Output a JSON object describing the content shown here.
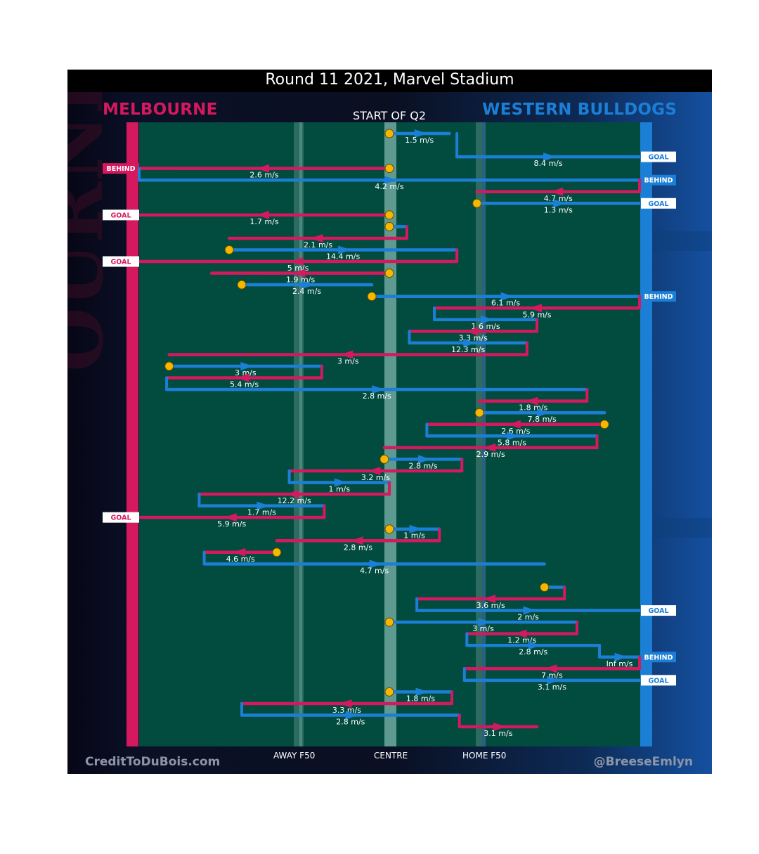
{
  "header": {
    "title": "Round 11 2021, Marvel Stadium",
    "subtitle": "START OF Q2"
  },
  "teams": {
    "home": "MELBOURNE",
    "away": "WESTERN BULLDOGS",
    "home_color": "#d4195f",
    "away_color": "#1c7fd6"
  },
  "footer": {
    "left_credit": "CreditToDuBois.com",
    "right_credit": "@BreeseEmlyn"
  },
  "colors": {
    "field": "#024b3f",
    "melbourne": "#d4195f",
    "bulldogs": "#1c7fd6",
    "marker": "#f5b800"
  },
  "chart_data": {
    "type": "line",
    "title": "Round 11 2021, Marvel Stadium",
    "subtitle": "START OF Q2",
    "x_axis_labels": [
      "AWAY F50",
      "CENTRE",
      "HOME F50"
    ],
    "legend": [
      "MELBOURNE",
      "WESTERN BULLDOGS"
    ],
    "chains": [
      {
        "team": "Bulldogs",
        "row": 0,
        "from": 0.5,
        "to": 0.62,
        "speed": "1.5 m/s",
        "start": true
      },
      {
        "team": "Bulldogs",
        "row": 2,
        "from": 0.635,
        "to": 1.0,
        "speed": "8.4 m/s",
        "end": "GOAL"
      },
      {
        "team": "Melbourne",
        "row": 3,
        "from": 0.5,
        "to": 0.0,
        "speed": "2.6 m/s",
        "start": true,
        "end": "BEHIND"
      },
      {
        "team": "Bulldogs",
        "row": 4,
        "from": 0.0,
        "to": 1.0,
        "speed": "4.2 m/s",
        "end": "BEHIND"
      },
      {
        "team": "Melbourne",
        "row": 5,
        "from": 1.0,
        "to": 0.675,
        "speed": "4.7 m/s"
      },
      {
        "team": "Bulldogs",
        "row": 6,
        "from": 0.675,
        "to": 1.0,
        "speed": "1.3 m/s",
        "start": true,
        "end": "GOAL"
      },
      {
        "team": "Melbourne",
        "row": 7,
        "from": 0.5,
        "to": 0.0,
        "speed": "1.7 m/s",
        "start": true,
        "end": "GOAL"
      },
      {
        "team": "Bulldogs",
        "row": 8,
        "from": 0.5,
        "to": 0.535,
        "speed": "",
        "start": true
      },
      {
        "team": "Melbourne",
        "row": 9,
        "from": 0.535,
        "to": 0.18,
        "speed": "2.1 m/s"
      },
      {
        "team": "Bulldogs",
        "row": 10,
        "from": 0.18,
        "to": 0.635,
        "speed": "14.4 m/s",
        "start": true
      },
      {
        "team": "Melbourne",
        "row": 11,
        "from": 0.635,
        "to": 0.0,
        "speed": "5 m/s",
        "end": "GOAL"
      },
      {
        "team": "Melbourne",
        "row": 12,
        "from": 0.5,
        "to": 0.145,
        "speed": "1.9 m/s",
        "start": true
      },
      {
        "team": "Bulldogs",
        "row": 13,
        "from": 0.205,
        "to": 0.465,
        "speed": "2.4 m/s",
        "start": true
      },
      {
        "team": "Bulldogs",
        "row": 14,
        "from": 0.465,
        "to": 1.0,
        "speed": "6.1 m/s",
        "start": true,
        "end": "BEHIND"
      },
      {
        "team": "Melbourne",
        "row": 15,
        "from": 1.0,
        "to": 0.59,
        "speed": "5.9 m/s"
      },
      {
        "team": "Bulldogs",
        "row": 16,
        "from": 0.59,
        "to": 0.795,
        "speed": "1.6 m/s"
      },
      {
        "team": "Melbourne",
        "row": 17,
        "from": 0.795,
        "to": 0.54,
        "speed": "3.3 m/s"
      },
      {
        "team": "Bulldogs",
        "row": 18,
        "from": 0.54,
        "to": 0.775,
        "speed": "12.3 m/s"
      },
      {
        "team": "Melbourne",
        "row": 19,
        "from": 0.775,
        "to": 0.06,
        "speed": "3 m/s"
      },
      {
        "team": "Bulldogs",
        "row": 20,
        "from": 0.06,
        "to": 0.365,
        "speed": "3 m/s",
        "start": true
      },
      {
        "team": "Melbourne",
        "row": 21,
        "from": 0.365,
        "to": 0.055,
        "speed": "5.4 m/s"
      },
      {
        "team": "Bulldogs",
        "row": 22,
        "from": 0.055,
        "to": 0.895,
        "speed": "2.8 m/s"
      },
      {
        "team": "Melbourne",
        "row": 23,
        "from": 0.895,
        "to": 0.68,
        "speed": "1.8 m/s"
      },
      {
        "team": "Bulldogs",
        "row": 24,
        "from": 0.68,
        "to": 0.93,
        "speed": "7.8 m/s",
        "start": true
      },
      {
        "team": "Melbourne",
        "row": 25,
        "from": 0.93,
        "to": 0.575,
        "speed": "2.6 m/s",
        "start": true
      },
      {
        "team": "Bulldogs",
        "row": 26,
        "from": 0.575,
        "to": 0.915,
        "speed": "5.8 m/s"
      },
      {
        "team": "Melbourne",
        "row": 27,
        "from": 0.915,
        "to": 0.49,
        "speed": "2.9 m/s"
      },
      {
        "team": "Bulldogs",
        "row": 28,
        "from": 0.49,
        "to": 0.645,
        "speed": "2.8 m/s",
        "start": true
      },
      {
        "team": "Melbourne",
        "row": 29,
        "from": 0.645,
        "to": 0.3,
        "speed": "3.2 m/s"
      },
      {
        "team": "Bulldogs",
        "row": 30,
        "from": 0.3,
        "to": 0.5,
        "speed": "1 m/s"
      },
      {
        "team": "Melbourne",
        "row": 31,
        "from": 0.5,
        "to": 0.12,
        "speed": "12.2 m/s"
      },
      {
        "team": "Bulldogs",
        "row": 32,
        "from": 0.12,
        "to": 0.37,
        "speed": "1.7 m/s"
      },
      {
        "team": "Melbourne",
        "row": 33,
        "from": 0.37,
        "to": 0.0,
        "speed": "5.9 m/s",
        "end": "GOAL"
      },
      {
        "team": "Bulldogs",
        "row": 34,
        "from": 0.5,
        "to": 0.6,
        "speed": "1 m/s",
        "start": true
      },
      {
        "team": "Melbourne",
        "row": 35,
        "from": 0.6,
        "to": 0.275,
        "speed": "2.8 m/s"
      },
      {
        "team": "Melbourne",
        "row": 36,
        "from": 0.275,
        "to": 0.13,
        "speed": "4.6 m/s",
        "start": true
      },
      {
        "team": "Bulldogs",
        "row": 37,
        "from": 0.13,
        "to": 0.81,
        "speed": "4.7 m/s"
      },
      {
        "team": "Bulldogs",
        "row": 39,
        "from": 0.81,
        "to": 0.85,
        "speed": "",
        "start": true
      },
      {
        "team": "Melbourne",
        "row": 40,
        "from": 0.85,
        "to": 0.555,
        "speed": "3.6 m/s"
      },
      {
        "team": "Bulldogs",
        "row": 41,
        "from": 0.555,
        "to": 1.0,
        "speed": "2 m/s",
        "end": "GOAL"
      },
      {
        "team": "Bulldogs",
        "row": 42,
        "from": 0.5,
        "to": 0.875,
        "speed": "3 m/s",
        "start": true
      },
      {
        "team": "Melbourne",
        "row": 43,
        "from": 0.875,
        "to": 0.655,
        "speed": "1.2 m/s"
      },
      {
        "team": "Bulldogs",
        "row": 44,
        "from": 0.655,
        "to": 0.92,
        "speed": "2.8 m/s"
      },
      {
        "team": "Bulldogs",
        "row": 45,
        "from": 0.92,
        "to": 1.0,
        "speed": "Inf m/s",
        "end": "BEHIND"
      },
      {
        "team": "Melbourne",
        "row": 46,
        "from": 1.0,
        "to": 0.65,
        "speed": "7 m/s"
      },
      {
        "team": "Bulldogs",
        "row": 47,
        "from": 0.65,
        "to": 1.0,
        "speed": "3.1 m/s",
        "end": "GOAL"
      },
      {
        "team": "Bulldogs",
        "row": 48,
        "from": 0.5,
        "to": 0.625,
        "speed": "1.8 m/s",
        "start": true
      },
      {
        "team": "Melbourne",
        "row": 49,
        "from": 0.625,
        "to": 0.205,
        "speed": "3.3 m/s"
      },
      {
        "team": "Bulldogs",
        "row": 50,
        "from": 0.205,
        "to": 0.64,
        "speed": "2.8 m/s"
      },
      {
        "team": "Melbourne",
        "row": 51,
        "from": 0.64,
        "to": 0.795,
        "speed": "3.1 m/s",
        "open": true
      }
    ]
  }
}
